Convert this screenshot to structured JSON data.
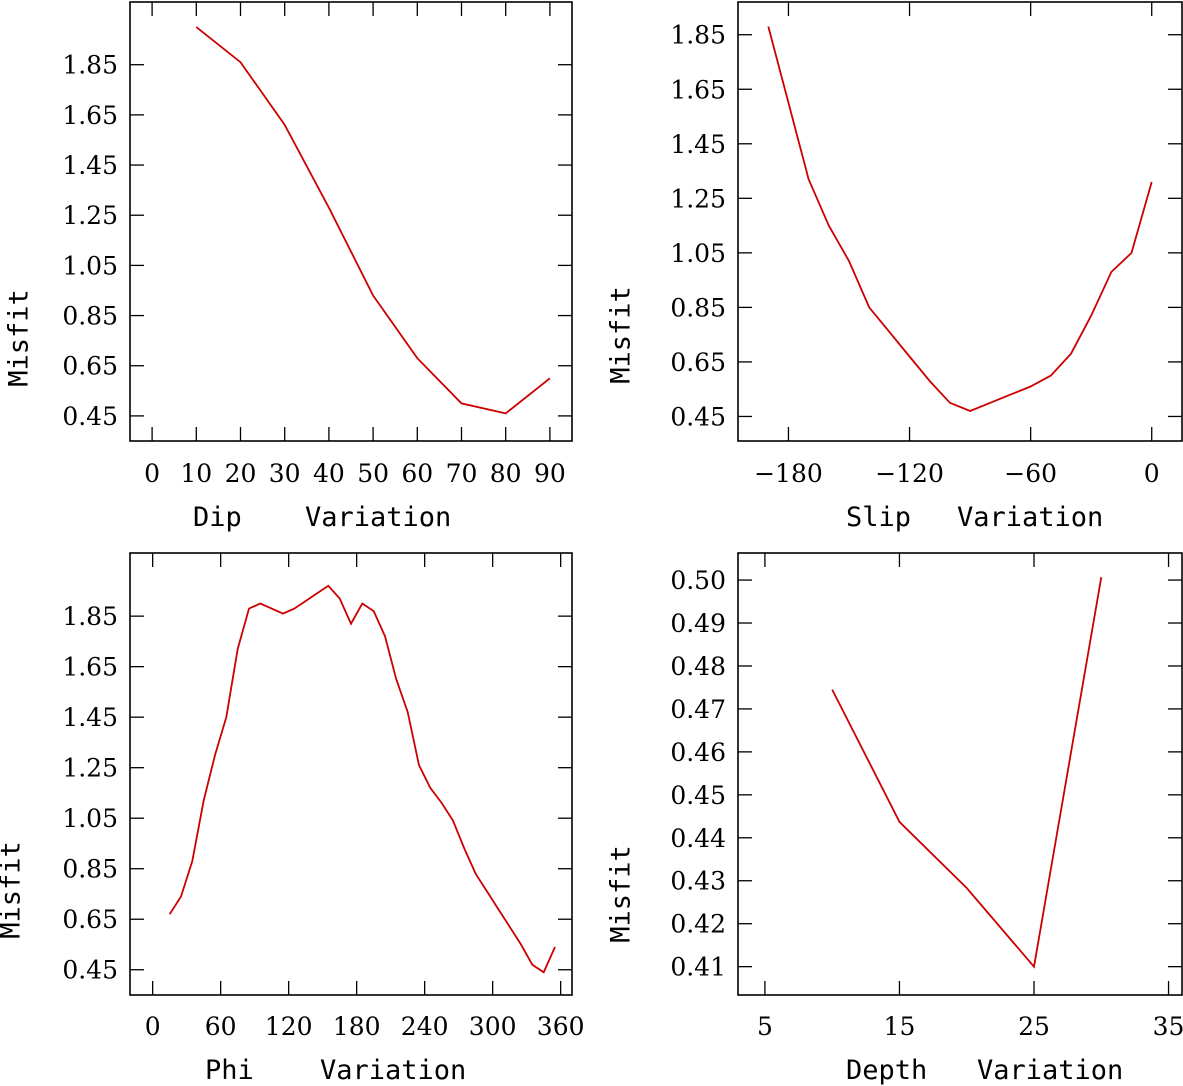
{
  "chart_data": [
    {
      "type": "line",
      "id": "dip",
      "xlabel_parts": [
        "Dip",
        "Variation"
      ],
      "ylabel": "Misfit",
      "xlim": [
        -5,
        95
      ],
      "ylim": [
        0.35,
        2.1
      ],
      "xticks": [
        0,
        10,
        20,
        30,
        40,
        50,
        60,
        70,
        80,
        90
      ],
      "xtick_labels": [
        "0",
        "10",
        "20",
        "30",
        "40",
        "50",
        "60",
        "70",
        "80",
        "90"
      ],
      "yticks": [
        0.45,
        0.65,
        0.85,
        1.05,
        1.25,
        1.45,
        1.65,
        1.85
      ],
      "ytick_labels": [
        "0.45",
        "0.65",
        "0.85",
        "1.05",
        "1.25",
        "1.45",
        "1.65",
        "1.85"
      ],
      "series": [
        {
          "name": "Dip",
          "color": "#cc0000",
          "x": [
            10,
            20,
            30,
            40,
            50,
            60,
            70,
            80,
            90
          ],
          "y": [
            2.0,
            1.86,
            1.61,
            1.28,
            0.93,
            0.68,
            0.5,
            0.46,
            0.6
          ]
        }
      ]
    },
    {
      "type": "line",
      "id": "slip",
      "xlabel_parts": [
        "Slip",
        "Variation"
      ],
      "ylabel": "Misfit",
      "xlim": [
        -205,
        15
      ],
      "ylim": [
        0.36,
        1.97
      ],
      "xticks": [
        -180,
        -120,
        -60,
        0
      ],
      "xtick_labels": [
        "−180",
        "−120",
        "−60",
        "0"
      ],
      "yticks": [
        0.45,
        0.65,
        0.85,
        1.05,
        1.25,
        1.45,
        1.65,
        1.85
      ],
      "ytick_labels": [
        "0.45",
        "0.65",
        "0.85",
        "1.05",
        "1.25",
        "1.45",
        "1.65",
        "1.85"
      ],
      "series": [
        {
          "name": "Slip",
          "color": "#cc0000",
          "x": [
            -190,
            -180,
            -170,
            -160,
            -150,
            -140,
            -130,
            -120,
            -110,
            -100,
            -90,
            -80,
            -70,
            -60,
            -50,
            -40,
            -30,
            -20,
            -10,
            0
          ],
          "y": [
            1.88,
            1.6,
            1.32,
            1.15,
            1.02,
            0.85,
            0.76,
            0.67,
            0.58,
            0.5,
            0.47,
            0.5,
            0.53,
            0.56,
            0.6,
            0.68,
            0.82,
            0.98,
            1.05,
            1.31
          ]
        }
      ]
    },
    {
      "type": "line",
      "id": "phi",
      "xlabel_parts": [
        "Phi",
        "Variation"
      ],
      "ylabel": "Misfit",
      "xlim": [
        -20,
        370
      ],
      "ylim": [
        0.35,
        2.1
      ],
      "xticks": [
        0,
        60,
        120,
        180,
        240,
        300,
        360
      ],
      "xtick_labels": [
        "0",
        "60",
        "120",
        "180",
        "240",
        "300",
        "360"
      ],
      "yticks": [
        0.45,
        0.65,
        0.85,
        1.05,
        1.25,
        1.45,
        1.65,
        1.85
      ],
      "ytick_labels": [
        "0.45",
        "0.65",
        "0.85",
        "1.05",
        "1.25",
        "1.45",
        "1.65",
        "1.85"
      ],
      "series": [
        {
          "name": "Phi",
          "color": "#cc0000",
          "x": [
            15,
            25,
            35,
            45,
            55,
            65,
            75,
            85,
            95,
            105,
            115,
            125,
            135,
            145,
            155,
            165,
            175,
            185,
            195,
            205,
            215,
            225,
            235,
            245,
            255,
            265,
            275,
            285,
            295,
            305,
            315,
            325,
            335,
            345,
            355
          ],
          "y": [
            0.67,
            0.74,
            0.88,
            1.12,
            1.3,
            1.45,
            1.72,
            1.88,
            1.9,
            1.88,
            1.86,
            1.88,
            1.91,
            1.94,
            1.97,
            1.92,
            1.82,
            1.9,
            1.87,
            1.77,
            1.6,
            1.47,
            1.26,
            1.17,
            1.11,
            1.04,
            0.93,
            0.83,
            0.76,
            0.69,
            0.62,
            0.55,
            0.47,
            0.44,
            0.54
          ]
        }
      ]
    },
    {
      "type": "line",
      "id": "depth",
      "xlabel_parts": [
        "Depth",
        "Variation"
      ],
      "ylabel": "Misfit",
      "xlim": [
        3,
        36
      ],
      "ylim": [
        0.4034,
        0.5063
      ],
      "xticks": [
        5,
        15,
        25,
        35
      ],
      "xtick_labels": [
        "5",
        "15",
        "25",
        "35"
      ],
      "yticks": [
        0.41,
        0.42,
        0.43,
        0.44,
        0.45,
        0.46,
        0.47,
        0.48,
        0.49,
        0.5
      ],
      "ytick_labels": [
        "0.41",
        "0.42",
        "0.43",
        "0.44",
        "0.45",
        "0.46",
        "0.47",
        "0.48",
        "0.49",
        "0.50"
      ],
      "series": [
        {
          "name": "Depth",
          "color": "#cc0000",
          "x": [
            10,
            15,
            20,
            25,
            30
          ],
          "y": [
            0.4745,
            0.4437,
            0.4283,
            0.41,
            0.5007
          ]
        }
      ]
    }
  ]
}
